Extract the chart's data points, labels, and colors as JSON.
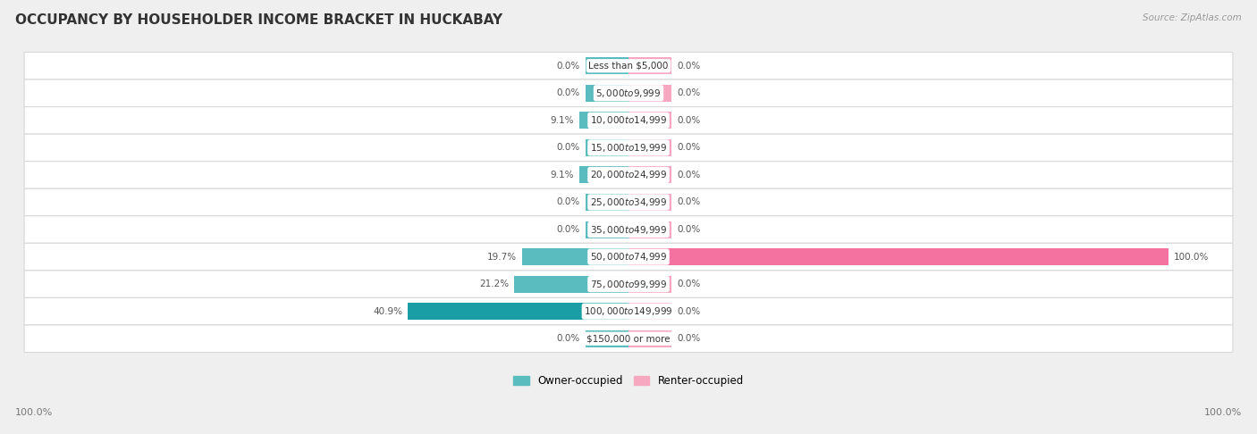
{
  "title": "OCCUPANCY BY HOUSEHOLDER INCOME BRACKET IN HUCKABAY",
  "source": "Source: ZipAtlas.com",
  "categories": [
    "Less than $5,000",
    "$5,000 to $9,999",
    "$10,000 to $14,999",
    "$15,000 to $19,999",
    "$20,000 to $24,999",
    "$25,000 to $34,999",
    "$35,000 to $49,999",
    "$50,000 to $74,999",
    "$75,000 to $99,999",
    "$100,000 to $149,999",
    "$150,000 or more"
  ],
  "owner_values": [
    0.0,
    0.0,
    9.1,
    0.0,
    9.1,
    0.0,
    0.0,
    19.7,
    21.2,
    40.9,
    0.0
  ],
  "renter_values": [
    0.0,
    0.0,
    0.0,
    0.0,
    0.0,
    0.0,
    0.0,
    100.0,
    0.0,
    0.0,
    0.0
  ],
  "owner_color": "#5bbcbf",
  "owner_color_dark": "#1a9ea6",
  "renter_color": "#f472a0",
  "renter_color_light": "#f7a8c0",
  "background_color": "#efefef",
  "row_color": "#ffffff",
  "title_fontsize": 11,
  "label_fontsize": 8,
  "axis_max": 100.0,
  "min_bar": 8.0,
  "legend_owner": "Owner-occupied",
  "legend_renter": "Renter-occupied"
}
